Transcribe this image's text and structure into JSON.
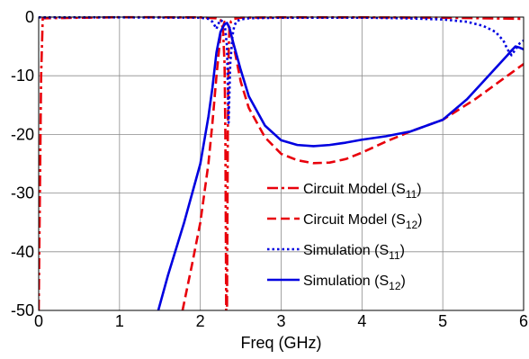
{
  "chart_data": {
    "type": "line",
    "title": "",
    "xlabel": "Freq (GHz)",
    "ylabel": "",
    "xlim": [
      0,
      6
    ],
    "ylim": [
      -50,
      0
    ],
    "xticks": [
      "0",
      "1",
      "2",
      "3",
      "4",
      "5",
      "6"
    ],
    "yticks": [
      "0",
      "-10",
      "-20",
      "-30",
      "-40",
      "-50"
    ],
    "grid": true,
    "legend_position": "bottom-right",
    "series": [
      {
        "name": "Circuit Model (S11)",
        "legend_text": "Circuit Model (S",
        "legend_sub": "11",
        "color": "#e8000b",
        "style": "dash-dot",
        "x": [
          0,
          0.03,
          0.05,
          1.0,
          2.0,
          2.2,
          2.25,
          2.28,
          2.3,
          2.31,
          2.32,
          2.33,
          2.34,
          2.35,
          2.36,
          2.38,
          2.42,
          2.5,
          3.0,
          4.0,
          5.0,
          5.5,
          6.0
        ],
        "y": [
          -50,
          -10,
          -0.2,
          -0.02,
          -0.05,
          -0.2,
          -0.5,
          -2,
          -8,
          -20,
          -50,
          -50,
          -20,
          -6,
          -2,
          -0.7,
          -0.3,
          -0.1,
          -0.05,
          -0.05,
          -0.1,
          -0.2,
          -0.3
        ]
      },
      {
        "name": "Circuit Model (S12)",
        "legend_text": "Circuit Model (S",
        "legend_sub": "12",
        "color": "#e8000b",
        "style": "dash",
        "x": [
          1.78,
          1.9,
          2.0,
          2.1,
          2.15,
          2.2,
          2.25,
          2.3,
          2.35,
          2.4,
          2.5,
          2.6,
          2.8,
          3.0,
          3.2,
          3.4,
          3.6,
          3.8,
          4.0,
          4.3,
          4.6,
          5.0,
          5.4,
          5.8,
          6.0
        ],
        "y": [
          -50,
          -42,
          -35,
          -25,
          -18,
          -10,
          -3,
          -0.8,
          -1.5,
          -4,
          -11,
          -15.5,
          -20.5,
          -23.3,
          -24.4,
          -24.9,
          -24.8,
          -24.2,
          -23.1,
          -21.2,
          -19.5,
          -17.5,
          -14,
          -10,
          -8
        ]
      },
      {
        "name": "Simulation (S11)",
        "legend_text": "Simulation (S",
        "legend_sub": "11",
        "color": "#0000e0",
        "style": "dot",
        "x": [
          0,
          1.0,
          2.0,
          2.1,
          2.15,
          2.18,
          2.2,
          2.22,
          2.25,
          2.3,
          2.33,
          2.35,
          2.37,
          2.4,
          2.42,
          2.45,
          2.5,
          2.6,
          3.0,
          4.0,
          4.5,
          5.0,
          5.3,
          5.5,
          5.65,
          5.75,
          5.8,
          5.85,
          5.9,
          5.95,
          6.0
        ],
        "y": [
          -0.05,
          -0.05,
          -0.1,
          -0.3,
          -0.8,
          -1.5,
          -2,
          -1.2,
          -0.5,
          -1,
          -5,
          -18,
          -8,
          -3,
          -1.5,
          -0.7,
          -0.4,
          -0.2,
          -0.1,
          -0.1,
          -0.2,
          -0.4,
          -0.8,
          -1.5,
          -2.5,
          -4,
          -5.5,
          -6.5,
          -5.5,
          -4.5,
          -4
        ]
      },
      {
        "name": "Simulation (S12)",
        "legend_text": "Simulation (S",
        "legend_sub": "12",
        "color": "#0000e0",
        "style": "solid",
        "x": [
          1.48,
          1.6,
          1.8,
          1.9,
          2.0,
          2.1,
          2.15,
          2.2,
          2.25,
          2.3,
          2.33,
          2.36,
          2.4,
          2.5,
          2.6,
          2.8,
          3.0,
          3.2,
          3.4,
          3.6,
          3.8,
          4.0,
          4.3,
          4.6,
          5.0,
          5.3,
          5.5,
          5.7,
          5.8,
          5.85,
          5.9,
          5.95,
          6.0
        ],
        "y": [
          -50,
          -44,
          -35,
          -30,
          -25,
          -17,
          -12,
          -6,
          -2.5,
          -1.2,
          -1,
          -1.8,
          -4,
          -9,
          -13.5,
          -18.5,
          -21,
          -21.8,
          -22,
          -21.8,
          -21.4,
          -20.9,
          -20.3,
          -19.5,
          -17.5,
          -14,
          -11,
          -8,
          -6.5,
          -5.7,
          -5,
          -5.2,
          -5.5
        ]
      }
    ]
  }
}
